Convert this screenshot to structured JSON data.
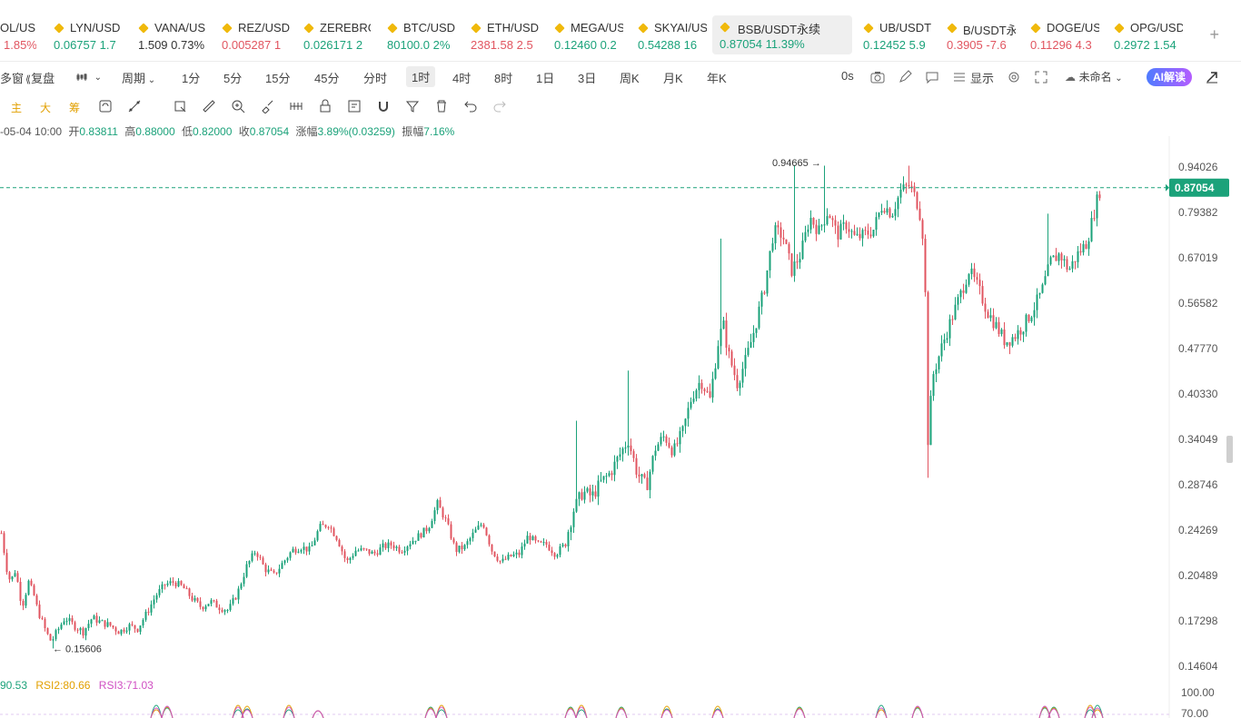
{
  "tickers": [
    {
      "name": "OL/USD",
      "price": "",
      "change": "1.85%",
      "dir": "down",
      "hasDot": false
    },
    {
      "name": "LYN/USD",
      "price": "0.06757",
      "change": "1.7",
      "dir": "up",
      "hasDot": true
    },
    {
      "name": "VANA/US",
      "price": "1.509",
      "change": "0.73%",
      "dir": "neu",
      "hasDot": true
    },
    {
      "name": "REZ/USD",
      "price": "0.005287",
      "change": "1",
      "dir": "down",
      "hasDot": true
    },
    {
      "name": "ZEREBRO",
      "price": "0.026171",
      "change": "2",
      "dir": "up",
      "hasDot": true
    },
    {
      "name": "BTC/USD",
      "price": "80100.0",
      "change": "2%",
      "dir": "up",
      "hasDot": true
    },
    {
      "name": "ETH/USD",
      "price": "2381.58",
      "change": "2.5",
      "dir": "down",
      "hasDot": true
    },
    {
      "name": "MEGA/US",
      "price": "0.12460",
      "change": "0.2",
      "dir": "up",
      "hasDot": true
    },
    {
      "name": "SKYAI/US",
      "price": "0.54288",
      "change": "16",
      "dir": "up",
      "hasDot": true
    },
    {
      "name": "BSB/USDT永续",
      "price": "0.87054",
      "change": "11.39%",
      "dir": "up",
      "hasDot": true
    },
    {
      "name": "UB/USDT",
      "price": "0.12452",
      "change": "5.9",
      "dir": "up",
      "hasDot": true
    },
    {
      "name": "B/USDT永",
      "price": "0.3905",
      "change": "-7.6",
      "dir": "down",
      "hasDot": true
    },
    {
      "name": "DOGE/US",
      "price": "0.11296",
      "change": "4.3",
      "dir": "down",
      "hasDot": true
    },
    {
      "name": "OPG/USD",
      "price": "0.2972",
      "change": "1.54",
      "dir": "up",
      "hasDot": true
    }
  ],
  "toolbar": {
    "multi_window": "多窗",
    "replay": "复盘",
    "period": "周期",
    "intervals": [
      "1分",
      "5分",
      "15分",
      "45分",
      "分时",
      "1时",
      "4时",
      "8时",
      "1日",
      "3日",
      "周K",
      "月K",
      "年K"
    ],
    "selected_interval": "1时",
    "countdown": "0s",
    "display": "显示",
    "unnamed": "未命名",
    "ai": "AI解读"
  },
  "draw_tools": {
    "main": "主",
    "big": "大",
    "chips": "筹"
  },
  "info": {
    "date": "-05-04 10:00",
    "open_label": "开",
    "open": "0.83811",
    "high_label": "高",
    "high": "0.88000",
    "low_label": "低",
    "low": "0.82000",
    "close_label": "收",
    "close": "0.87054",
    "change_label": "涨幅",
    "change": "3.89%(0.03259)",
    "amp_label": "振幅",
    "amp": "7.16%"
  },
  "chart_data": {
    "type": "candlestick",
    "symbol": "BSB/USDT永续",
    "interval": "1时",
    "y_axis_scale": "log",
    "y_ticks": [
      "0.94026",
      "0.79382",
      "0.67019",
      "0.56582",
      "0.47770",
      "0.40330",
      "0.34049",
      "0.28746",
      "0.24269",
      "0.20489",
      "0.17298",
      "0.14604"
    ],
    "last_price": "0.87054",
    "high_annotation": "0.94665",
    "low_annotation": "0.15606",
    "anchors": [
      [
        0,
        0.24
      ],
      [
        6,
        0.21
      ],
      [
        10,
        0.2
      ],
      [
        16,
        0.21
      ],
      [
        20,
        0.19
      ],
      [
        24,
        0.185
      ],
      [
        30,
        0.2
      ],
      [
        36,
        0.19
      ],
      [
        40,
        0.18
      ],
      [
        50,
        0.165
      ],
      [
        55,
        0.16
      ],
      [
        60,
        0.165
      ],
      [
        70,
        0.175
      ],
      [
        80,
        0.17
      ],
      [
        90,
        0.166
      ],
      [
        100,
        0.175
      ],
      [
        110,
        0.172
      ],
      [
        120,
        0.17
      ],
      [
        130,
        0.166
      ],
      [
        140,
        0.17
      ],
      [
        150,
        0.168
      ],
      [
        160,
        0.178
      ],
      [
        170,
        0.19
      ],
      [
        180,
        0.198
      ],
      [
        190,
        0.2
      ],
      [
        200,
        0.196
      ],
      [
        210,
        0.188
      ],
      [
        220,
        0.182
      ],
      [
        230,
        0.186
      ],
      [
        240,
        0.182
      ],
      [
        250,
        0.18
      ],
      [
        260,
        0.192
      ],
      [
        270,
        0.212
      ],
      [
        280,
        0.225
      ],
      [
        290,
        0.21
      ],
      [
        300,
        0.205
      ],
      [
        310,
        0.215
      ],
      [
        320,
        0.225
      ],
      [
        330,
        0.228
      ],
      [
        340,
        0.225
      ],
      [
        350,
        0.245
      ],
      [
        360,
        0.248
      ],
      [
        370,
        0.235
      ],
      [
        380,
        0.215
      ],
      [
        390,
        0.225
      ],
      [
        400,
        0.225
      ],
      [
        410,
        0.222
      ],
      [
        420,
        0.228
      ],
      [
        430,
        0.23
      ],
      [
        440,
        0.225
      ],
      [
        450,
        0.232
      ],
      [
        460,
        0.238
      ],
      [
        470,
        0.245
      ],
      [
        480,
        0.268
      ],
      [
        490,
        0.25
      ],
      [
        500,
        0.225
      ],
      [
        510,
        0.228
      ],
      [
        520,
        0.24
      ],
      [
        530,
        0.25
      ],
      [
        540,
        0.225
      ],
      [
        550,
        0.215
      ],
      [
        560,
        0.22
      ],
      [
        570,
        0.222
      ],
      [
        580,
        0.238
      ],
      [
        590,
        0.23
      ],
      [
        600,
        0.23
      ],
      [
        610,
        0.222
      ],
      [
        620,
        0.23
      ],
      [
        630,
        0.262
      ],
      [
        640,
        0.28
      ],
      [
        650,
        0.275
      ],
      [
        660,
        0.29
      ],
      [
        670,
        0.3
      ],
      [
        680,
        0.32
      ],
      [
        690,
        0.34
      ],
      [
        700,
        0.3
      ],
      [
        710,
        0.285
      ],
      [
        720,
        0.33
      ],
      [
        730,
        0.345
      ],
      [
        740,
        0.325
      ],
      [
        750,
        0.35
      ],
      [
        760,
        0.4
      ],
      [
        770,
        0.425
      ],
      [
        780,
        0.395
      ],
      [
        790,
        0.5
      ],
      [
        795,
        0.52
      ],
      [
        800,
        0.47
      ],
      [
        810,
        0.42
      ],
      [
        820,
        0.46
      ],
      [
        830,
        0.52
      ],
      [
        840,
        0.6
      ],
      [
        850,
        0.74
      ],
      [
        860,
        0.73
      ],
      [
        870,
        0.64
      ],
      [
        880,
        0.68
      ],
      [
        890,
        0.78
      ],
      [
        900,
        0.74
      ],
      [
        910,
        0.8
      ],
      [
        920,
        0.73
      ],
      [
        930,
        0.76
      ],
      [
        940,
        0.72
      ],
      [
        950,
        0.73
      ],
      [
        960,
        0.745
      ],
      [
        970,
        0.82
      ],
      [
        980,
        0.79
      ],
      [
        990,
        0.86
      ],
      [
        1000,
        0.88
      ],
      [
        1010,
        0.81
      ],
      [
        1016,
        0.7
      ],
      [
        1020,
        0.34
      ],
      [
        1025,
        0.43
      ],
      [
        1035,
        0.48
      ],
      [
        1045,
        0.53
      ],
      [
        1055,
        0.58
      ],
      [
        1065,
        0.64
      ],
      [
        1075,
        0.6
      ],
      [
        1085,
        0.55
      ],
      [
        1095,
        0.52
      ],
      [
        1105,
        0.49
      ],
      [
        1115,
        0.5
      ],
      [
        1125,
        0.52
      ],
      [
        1135,
        0.55
      ],
      [
        1145,
        0.59
      ],
      [
        1155,
        0.66
      ],
      [
        1165,
        0.68
      ],
      [
        1175,
        0.64
      ],
      [
        1185,
        0.68
      ],
      [
        1195,
        0.71
      ],
      [
        1205,
        0.82
      ],
      [
        1210,
        0.87
      ]
    ],
    "rsi": {
      "rsi1_label": "RSI1",
      "rsi1": "90.53",
      "rsi2_label": "RSI2",
      "rsi2": "80.66",
      "rsi3_label": "RSI3",
      "rsi3": "71.03",
      "ticks": [
        "100.00",
        "70.00"
      ]
    },
    "colors": {
      "up": "#1ba27a",
      "down": "#e15560",
      "last_price": "#1ba27a",
      "grid_dash": "#1ba27a"
    }
  }
}
